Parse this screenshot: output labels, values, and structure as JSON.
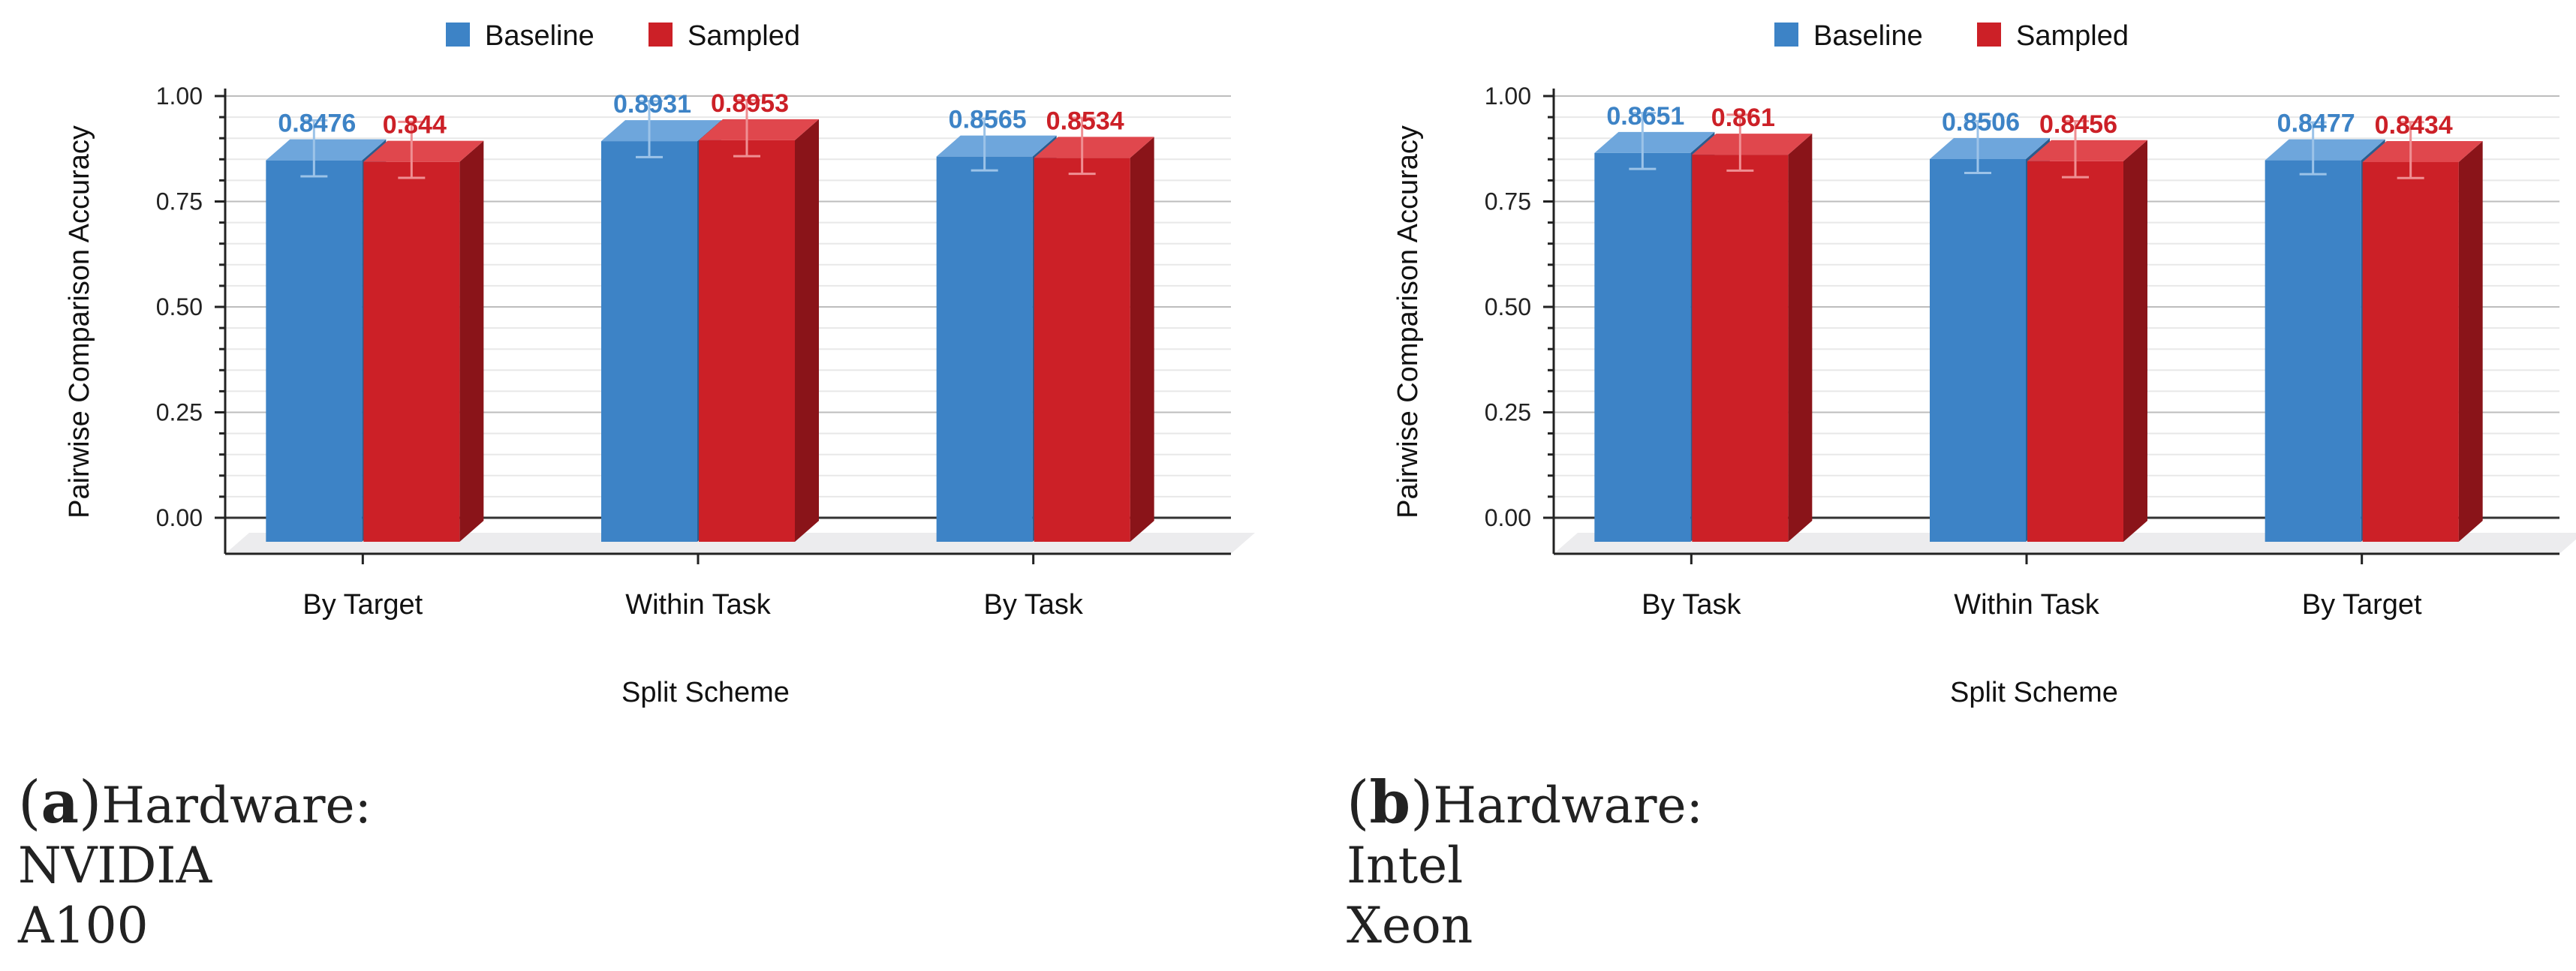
{
  "colors": {
    "baseline": "#3d83c6",
    "baseline_top": "#6ea6dc",
    "baseline_side": "#2a5d8f",
    "sampled": "#cc2027",
    "sampled_top": "#e0474d",
    "sampled_side": "#8a1419",
    "grid": "#dddddd",
    "axis": "#222222"
  },
  "chart_data": [
    {
      "type": "bar",
      "title": "",
      "xlabel": "Split Scheme",
      "ylabel": "Pairwise Comparison Accuracy",
      "ylim": [
        0,
        1
      ],
      "yticks": [
        "0.00",
        "0.25",
        "0.50",
        "0.75",
        "1.00"
      ],
      "categories": [
        "By Target",
        "Within Task",
        "By Task"
      ],
      "legend_position": "top-center",
      "series": [
        {
          "name": "Baseline",
          "values": [
            0.8476,
            0.8931,
            0.8565
          ],
          "labels": [
            "0.8476",
            "0.8931",
            "0.8565"
          ],
          "error": [
            0.09,
            0.09,
            0.08
          ]
        },
        {
          "name": "Sampled",
          "values": [
            0.844,
            0.8953,
            0.8534
          ],
          "labels": [
            "0.844",
            "0.8953",
            "0.8534"
          ],
          "error": [
            0.09,
            0.09,
            0.09
          ]
        }
      ],
      "caption": {
        "tag": "a",
        "lines": [
          "Hardware:",
          "NVIDIA",
          "A100"
        ]
      }
    },
    {
      "type": "bar",
      "title": "",
      "xlabel": "Split Scheme",
      "ylabel": "Pairwise Comparison Accuracy",
      "ylim": [
        0,
        1
      ],
      "yticks": [
        "0.00",
        "0.25",
        "0.50",
        "0.75",
        "1.00"
      ],
      "categories": [
        "By Task",
        "Within Task",
        "By Target"
      ],
      "legend_position": "top-center",
      "series": [
        {
          "name": "Baseline",
          "values": [
            0.8651,
            0.8506,
            0.8477
          ],
          "labels": [
            "0.8651",
            "0.8506",
            "0.8477"
          ],
          "error": [
            0.09,
            0.08,
            0.08
          ]
        },
        {
          "name": "Sampled",
          "values": [
            0.861,
            0.8456,
            0.8434
          ],
          "labels": [
            "0.861",
            "0.8456",
            "0.8434"
          ],
          "error": [
            0.09,
            0.09,
            0.09
          ]
        }
      ],
      "caption": {
        "tag": "b",
        "lines": [
          "Hardware:",
          "Intel",
          "Xeon"
        ]
      }
    }
  ]
}
